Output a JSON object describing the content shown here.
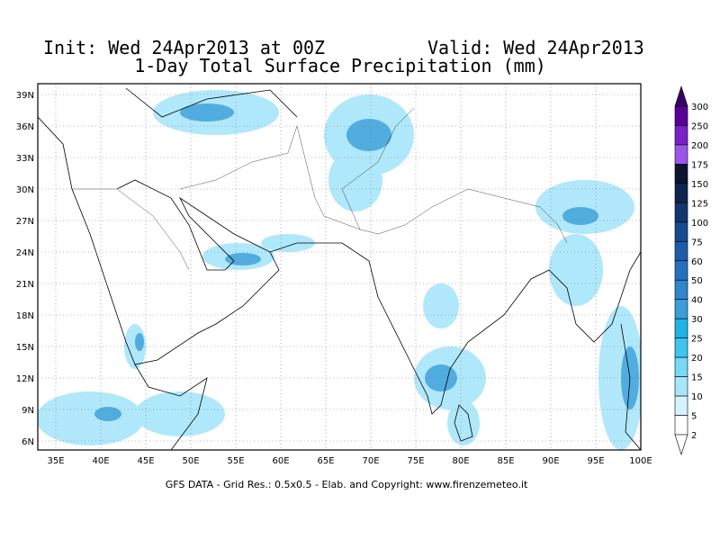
{
  "header": {
    "init": "Init: Wed 24Apr2013 at 00Z",
    "valid": "Valid: Wed 24Apr2013",
    "title": "1-Day Total Surface Precipitation (mm)"
  },
  "map": {
    "lon_labels": [
      "35E",
      "40E",
      "45E",
      "50E",
      "55E",
      "60E",
      "65E",
      "70E",
      "75E",
      "80E",
      "85E",
      "90E",
      "95E",
      "100E"
    ],
    "lat_labels": [
      "39N",
      "36N",
      "33N",
      "30N",
      "27N",
      "24N",
      "21N",
      "18N",
      "15N",
      "12N",
      "9N",
      "6N"
    ]
  },
  "legend": {
    "labels": [
      300,
      250,
      200,
      175,
      150,
      125,
      100,
      75,
      60,
      50,
      40,
      30,
      25,
      20,
      15,
      10,
      5,
      2
    ],
    "colors": [
      "#3a006a",
      "#5a0096",
      "#7a20c8",
      "#9c55ea",
      "#0b1430",
      "#0e2450",
      "#123670",
      "#184a90",
      "#1e5ca8",
      "#2470bc",
      "#2f86cc",
      "#3a9ed8",
      "#1fb4e6",
      "#3cc6f0",
      "#78d8f6",
      "#a8e6fb",
      "#d4f3fe",
      "#ffffff"
    ]
  },
  "footer": "GFS DATA - Grid Res.: 0.5x0.5 - Elab. and Copyright: www.firenzemeteo.it"
}
